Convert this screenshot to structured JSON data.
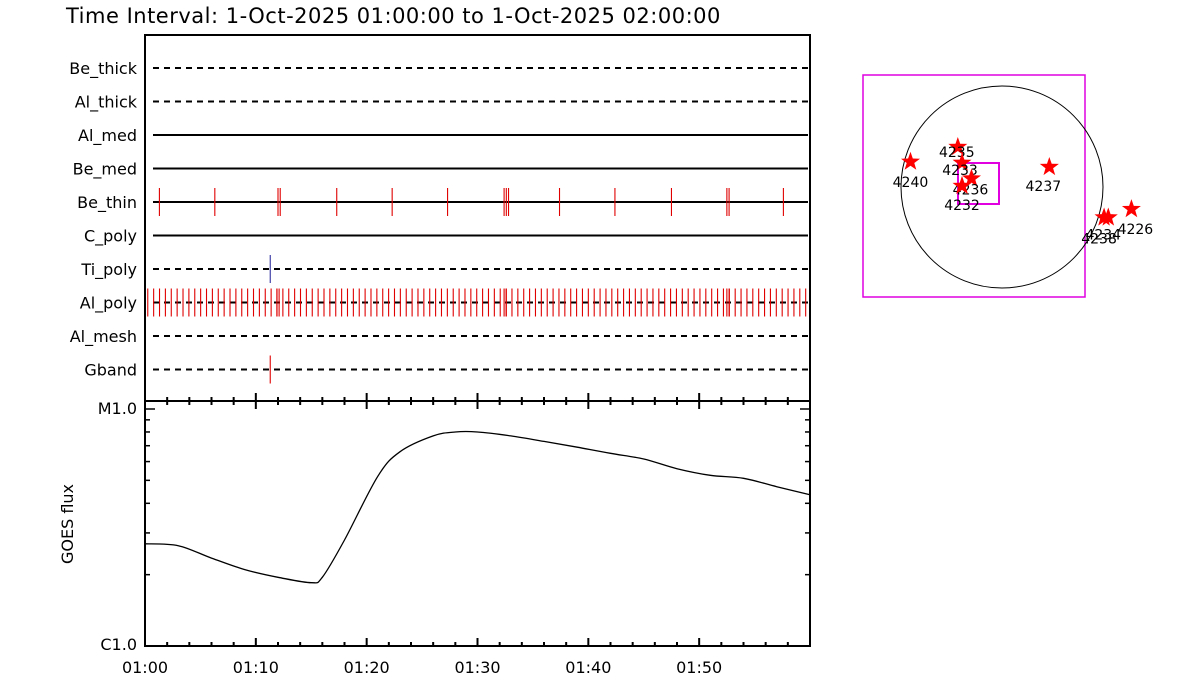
{
  "title": "Time Interval:  1-Oct-2025 01:00:00 to  1-Oct-2025 02:00:00",
  "colors": {
    "event": "#e00000",
    "ti_event": "#3030a0",
    "box": "#e000e0",
    "star": "#ff0000",
    "line": "#000000"
  },
  "chart_data": [
    {
      "type": "event-timeline",
      "x_range_minutes": [
        0,
        60
      ],
      "channels": [
        {
          "label": "Be_thick",
          "line": "dashed",
          "events": [],
          "color": "event"
        },
        {
          "label": "Al_thick",
          "line": "dashed",
          "events": [],
          "color": "event"
        },
        {
          "label": "Al_med",
          "line": "solid",
          "events": [],
          "color": "event"
        },
        {
          "label": "Be_med",
          "line": "solid",
          "events": [],
          "color": "event"
        },
        {
          "label": "Be_thin",
          "line": "solid",
          "events": [
            1.3,
            6.3,
            12.0,
            12.2,
            17.3,
            22.3,
            27.3,
            32.4,
            32.6,
            32.8,
            37.4,
            42.4,
            47.5,
            52.5,
            52.7,
            57.6
          ],
          "color": "event"
        },
        {
          "label": "C_poly",
          "line": "solid",
          "events": [],
          "color": "event"
        },
        {
          "label": "Ti_poly",
          "line": "dashed",
          "events": [
            11.3
          ],
          "color": "ti_event"
        },
        {
          "label": "Al_poly",
          "line": "dashed",
          "events": [],
          "dense_events": true,
          "dense_step": 0.53,
          "color": "event"
        },
        {
          "label": "Al_mesh",
          "line": "dashed",
          "events": [],
          "color": "event"
        },
        {
          "label": "Gband",
          "line": "dashed",
          "events": [
            11.3
          ],
          "color": "event"
        }
      ]
    },
    {
      "type": "line",
      "ylabel": "GOES flux",
      "y_scale": "log",
      "ytick_labels": [
        "C1.0",
        "M1.0"
      ],
      "ylim": [
        1e-06,
        1e-05
      ],
      "xtick_labels": [
        "01:00",
        "01:10",
        "01:20",
        "01:30",
        "01:40",
        "01:50"
      ],
      "xlim_minutes": [
        0,
        60
      ],
      "series": [
        {
          "x": [
            0,
            3,
            6,
            9,
            12,
            15,
            16,
            18,
            21,
            23,
            26,
            28,
            30,
            33,
            36,
            39,
            42,
            45,
            48,
            51,
            54,
            57,
            60
          ],
          "y": [
            2.7e-06,
            2.65e-06,
            2.35e-06,
            2.1e-06,
            1.95e-06,
            1.85e-06,
            1.95e-06,
            2.8e-06,
            5.2e-06,
            6.6e-06,
            7.7e-06,
            8e-06,
            8e-06,
            7.7e-06,
            7.3e-06,
            6.9e-06,
            6.5e-06,
            6.15e-06,
            5.6e-06,
            5.25e-06,
            5.1e-06,
            4.7e-06,
            4.35e-06
          ]
        }
      ]
    }
  ],
  "solar_map": {
    "regions": [
      {
        "label": "4240",
        "x": -870,
        "y": 240
      },
      {
        "label": "4235",
        "x": -420,
        "y": 380
      },
      {
        "label": "4233",
        "x": -380,
        "y": 230
      },
      {
        "label": "4236",
        "x": -290,
        "y": 80
      },
      {
        "label": "4232",
        "x": -380,
        "y": 10
      },
      {
        "label": "4237",
        "x": 450,
        "y": 190
      },
      {
        "label": "4238",
        "x": 970,
        "y": -290
      },
      {
        "label": "4234",
        "x": 1010,
        "y": -290
      },
      {
        "label": "4226",
        "x": 1230,
        "y": -210
      }
    ]
  }
}
